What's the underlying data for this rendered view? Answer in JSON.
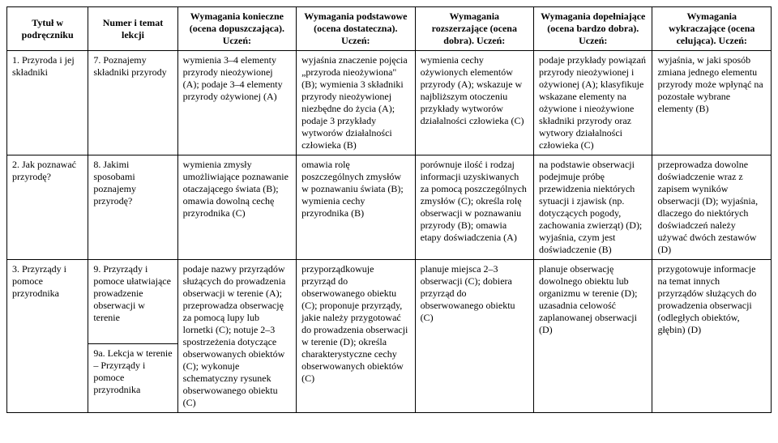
{
  "headers": {
    "c1": "Tytuł w podręczniku",
    "c2": "Numer i temat lekcji",
    "c3": "Wymagania konieczne (ocena dopuszczająca). Uczeń:",
    "c4": "Wymagania podstawowe (ocena dostateczna). Uczeń:",
    "c5": "Wymagania rozszerzające (ocena dobra). Uczeń:",
    "c6": "Wymagania dopełniające (ocena bardzo dobra). Uczeń:",
    "c7": "Wymagania wykraczające (ocena celująca). Uczeń:"
  },
  "rows": [
    {
      "c1": "1. Przyroda i jej składniki",
      "c2": "7. Poznajemy składniki przyrody",
      "c3": "wymienia 3–4 elementy przyrody nieożywionej (A); podaje 3–4 elementy przyrody ożywionej (A)",
      "c4": "wyjaśnia znaczenie pojęcia „przyroda nieożywiona\" (B); wymienia 3 składniki przyrody nieożywionej niezbędne do życia (A); podaje 3 przykłady wytworów działalności człowieka (B)",
      "c5": "wymienia cechy ożywionych elementów przyrody (A); wskazuje w najbliższym otoczeniu przykłady wytworów działalności człowieka (C)",
      "c6": "podaje przykłady powiązań przyrody nieożywionej i ożywionej (A); klasyfikuje wskazane elementy na ożywione i nieożywione składniki przyrody oraz wytwory działalności człowieka (C)",
      "c7": "wyjaśnia, w jaki sposób zmiana jednego elementu przyrody może wpłynąć na pozostałe wybrane elementy (B)"
    },
    {
      "c1": "2. Jak poznawać przyrodę?",
      "c2": "8. Jakimi sposobami poznajemy przyrodę?",
      "c3": "wymienia zmysły umożliwiające poznawanie otaczającego świata (B); omawia dowolną cechę przyrodnika (C)",
      "c4": "omawia rolę poszczególnych zmysłów w poznawaniu świata (B); wymienia cechy przyrodnika (B)",
      "c5": "porównuje ilość i rodzaj informacji uzyskiwanych za pomocą poszczególnych zmysłów (C); określa rolę obserwacji w poznawaniu przyrody (B); omawia etapy doświadczenia (A)",
      "c6": "na podstawie obserwacji podejmuje próbę przewidzenia niektórych sytuacji i zjawisk (np. dotyczących pogody, zachowania zwierząt) (D); wyjaśnia, czym jest doświadczenie (B)",
      "c7": "przeprowadza dowolne doświadczenie wraz z zapisem wyników obserwacji (D); wyjaśnia, dlaczego do niektórych doświadczeń należy używać dwóch zestawów (D)"
    },
    {
      "c1": "3. Przyrządy i pomoce przyrodnika",
      "c2a": "9. Przyrządy i pomoce ułatwiające prowadzenie obserwacji w terenie",
      "c2b": "9a. Lekcja w terenie – Przyrządy i pomoce przyrodnika",
      "c3": "podaje nazwy przyrządów służących do prowadzenia obserwacji w terenie (A); przeprowadza obserwację za pomocą lupy lub lornetki (C); notuje 2–3 spostrzeżenia dotyczące obserwowanych obiektów (C); wykonuje schematyczny rysunek obserwowanego obiektu (C)",
      "c4": "przyporządkowuje przyrząd do obserwowanego obiektu (C); proponuje przyrządy, jakie należy przygotować do prowadzenia obserwacji w terenie (D); określa charakterystyczne cechy obserwowanych obiektów (C)",
      "c5": "planuje miejsca 2–3 obserwacji (C); dobiera przyrząd do obserwowanego obiektu (C)",
      "c6": "planuje obserwację dowolnego obiektu lub organizmu w terenie (D); uzasadnia celowość zaplanowanej obserwacji (D)",
      "c7": "przygotowuje informacje na temat innych przyrządów służących do prowadzenia obserwacji (odległych obiektów, głębin) (D)"
    }
  ]
}
